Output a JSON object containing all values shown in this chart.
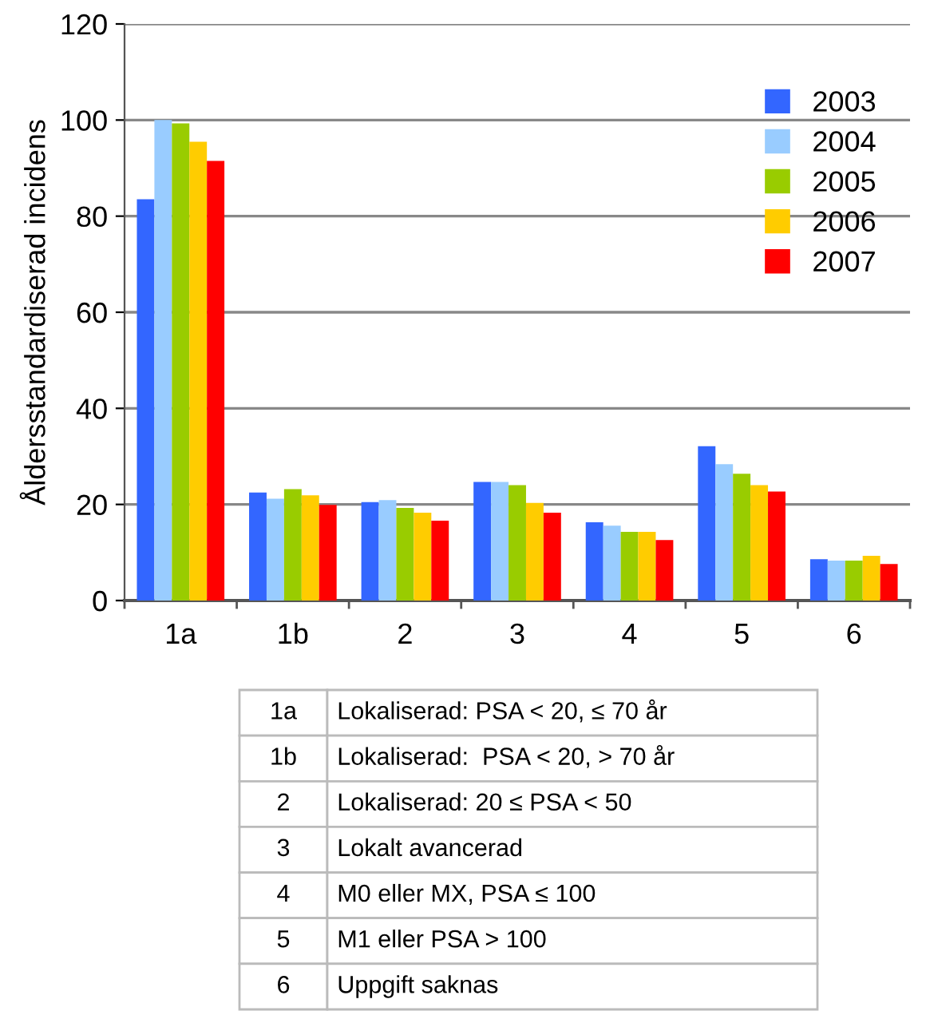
{
  "chart_data": {
    "type": "bar",
    "ylabel": "Åldersstandardiserad incidens",
    "categories": [
      "1a",
      "1b",
      "2",
      "3",
      "4",
      "5",
      "6"
    ],
    "series": [
      {
        "name": "2003",
        "color": "#3366ff",
        "values": [
          83.5,
          22.5,
          20.5,
          24.7,
          16.3,
          32.1,
          8.6
        ]
      },
      {
        "name": "2004",
        "color": "#99ccff",
        "values": [
          100,
          21.2,
          20.9,
          24.7,
          15.6,
          28.4,
          8.3
        ]
      },
      {
        "name": "2005",
        "color": "#99cc00",
        "values": [
          99.3,
          23.2,
          19.3,
          24.0,
          14.3,
          26.4,
          8.3
        ]
      },
      {
        "name": "2006",
        "color": "#ffcc00",
        "values": [
          95.5,
          21.9,
          18.3,
          20.3,
          14.3,
          24.0,
          9.3
        ]
      },
      {
        "name": "2007",
        "color": "#ff0000",
        "values": [
          91.5,
          19.9,
          16.6,
          18.3,
          12.6,
          22.7,
          7.6
        ]
      }
    ],
    "ylim": [
      0,
      120
    ],
    "yticks": [
      0,
      20,
      40,
      60,
      80,
      100,
      120
    ],
    "grid": "y",
    "legend": "top right",
    "annotations": [
      "1a",
      "Lokaliserad: PSA < 20, ≤ 70 år",
      "1b",
      "Lokaliserad:  PSA < 20, > 70 år",
      "2",
      "Lokaliserad: 20 ≤ PSA < 50",
      "3",
      "Lokalt avancerad",
      "4",
      "M0 eller MX, PSA ≤ 100",
      "5",
      "M1 eller PSA > 100",
      "6",
      "Uppgift saknas"
    ]
  }
}
